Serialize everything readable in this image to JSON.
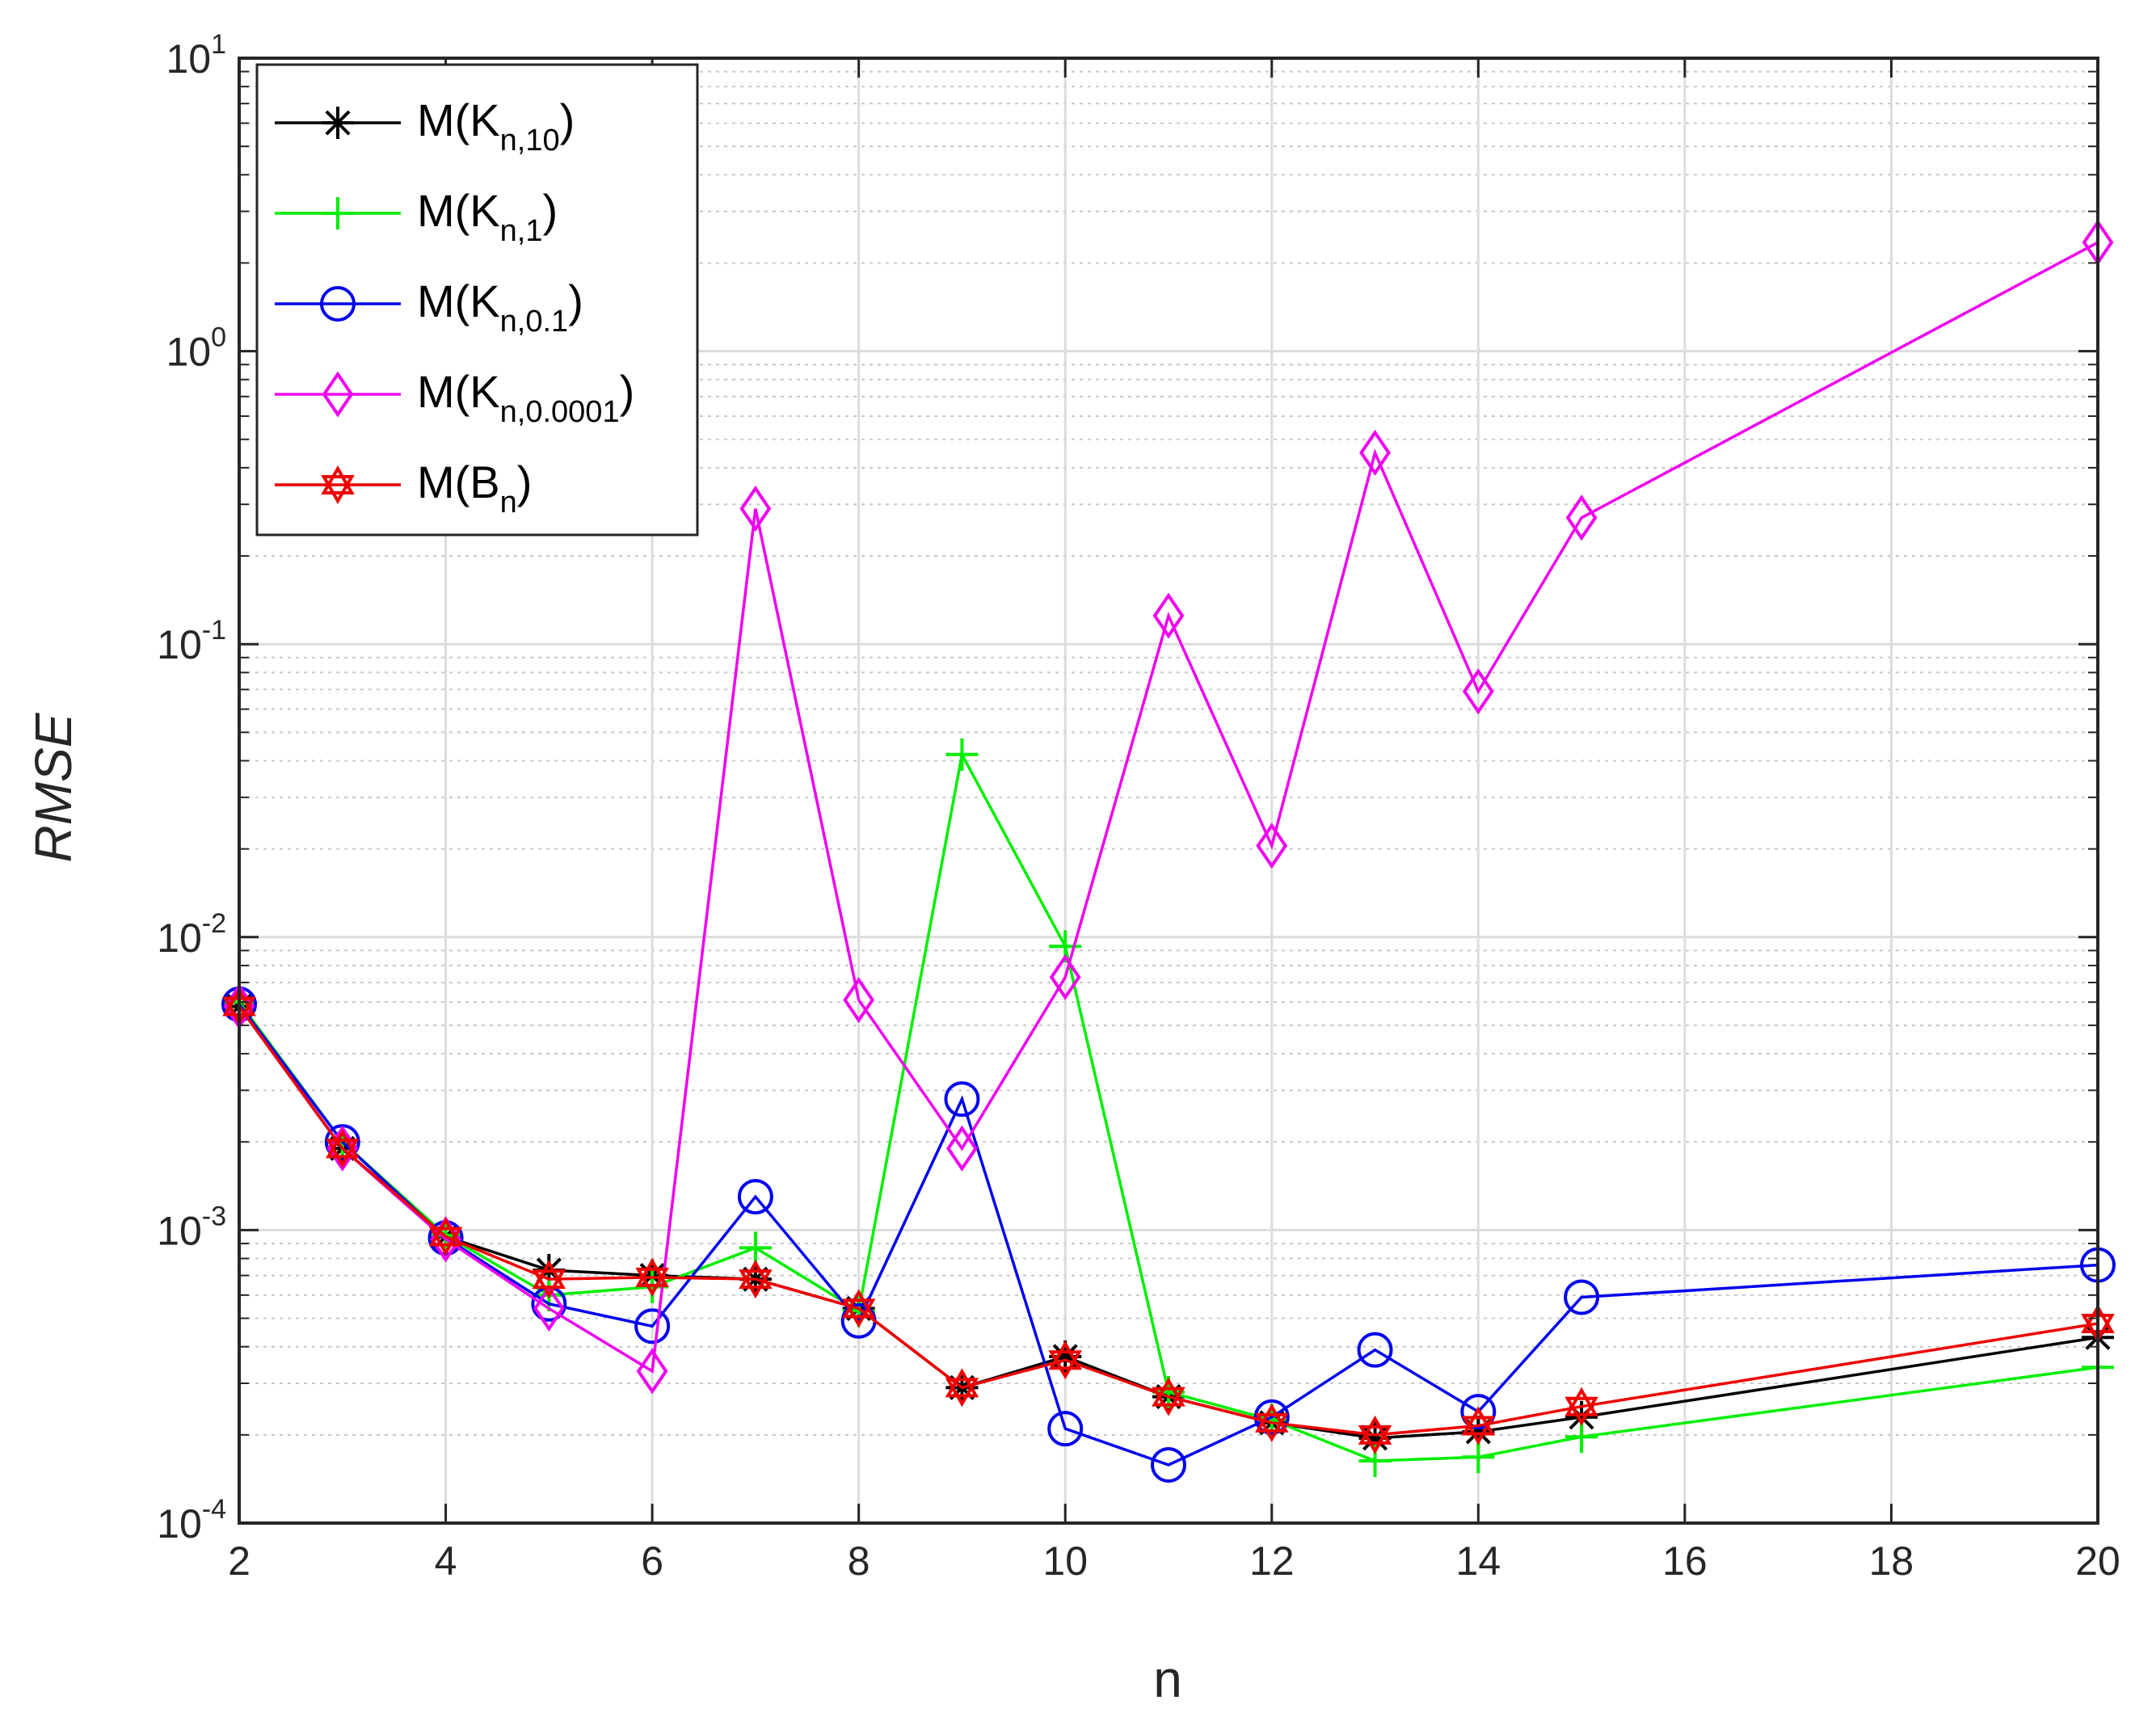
{
  "chart_data": {
    "type": "line",
    "yscale": "log",
    "xlabel": "n",
    "ylabel": "RMSE",
    "xlim": [
      2,
      20
    ],
    "ylim": [
      0.0001,
      10
    ],
    "grid": true,
    "legend_position": "top-left",
    "x_ticks": [
      "2",
      "4",
      "6",
      "8",
      "10",
      "12",
      "14",
      "16",
      "18",
      "20"
    ],
    "y_ticks": [
      {
        "base": "10",
        "exp": "-4"
      },
      {
        "base": "10",
        "exp": "-3"
      },
      {
        "base": "10",
        "exp": "-2"
      },
      {
        "base": "10",
        "exp": "-1"
      },
      {
        "base": "10",
        "exp": "0"
      },
      {
        "base": "10",
        "exp": "1"
      }
    ],
    "x": [
      2,
      3,
      4,
      5,
      6,
      7,
      8,
      9,
      10,
      11,
      12,
      13,
      14,
      15,
      20
    ],
    "series": [
      {
        "label_main": "M(K",
        "label_sub": "n,10",
        "label_end": ")",
        "color": "#000000",
        "marker": "asterisk",
        "values": [
          0.0058,
          0.0019,
          0.00095,
          0.00073,
          0.0007,
          0.00068,
          0.00054,
          0.00029,
          0.00037,
          0.00027,
          0.00022,
          0.000195,
          0.000205,
          0.00023,
          0.00043
        ]
      },
      {
        "label_main": "M(K",
        "label_sub": "n,1",
        "label_end": ")",
        "color": "#00ee00",
        "marker": "plus",
        "values": [
          0.006,
          0.002,
          0.00096,
          0.0006,
          0.00064,
          0.00087,
          0.00053,
          0.042,
          0.0093,
          0.00028,
          0.000225,
          0.000163,
          0.000168,
          0.000197,
          0.00034
        ]
      },
      {
        "label_main": "M(K",
        "label_sub": "n,0.1",
        "label_end": ")",
        "color": "#0000ee",
        "marker": "circle",
        "values": [
          0.0059,
          0.002,
          0.00094,
          0.00056,
          0.00047,
          0.0013,
          0.00049,
          0.0028,
          0.00021,
          0.000158,
          0.00023,
          0.00039,
          0.00024,
          0.00059,
          0.00076
        ]
      },
      {
        "label_main": "M(K",
        "label_sub": "n,0.0001",
        "label_end": ")",
        "color": "#ee00ee",
        "marker": "diamond",
        "values": [
          0.0058,
          0.0019,
          0.00093,
          0.00054,
          0.00033,
          0.29,
          0.0061,
          0.0019,
          0.0073,
          0.125,
          0.0205,
          0.45,
          0.069,
          0.27,
          2.35
        ]
      },
      {
        "label_main": "M(B",
        "label_sub": "n",
        "label_end": ")",
        "color": "#ee0000",
        "marker": "hexagram",
        "values": [
          0.0058,
          0.0019,
          0.00095,
          0.00068,
          0.00069,
          0.00068,
          0.00054,
          0.00029,
          0.00036,
          0.00027,
          0.00022,
          0.0002,
          0.000215,
          0.00025,
          0.00048
        ]
      }
    ]
  }
}
